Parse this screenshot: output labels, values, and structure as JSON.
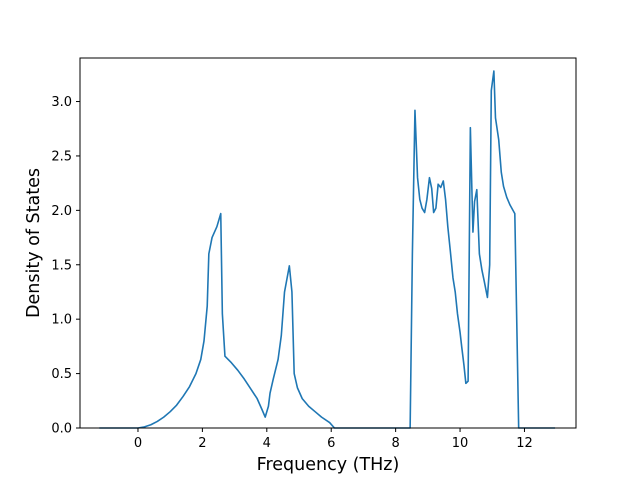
{
  "chart_data": {
    "type": "line",
    "title": "",
    "xlabel": "Frequency (THz)",
    "ylabel": "Density of States",
    "xlim": [
      -1.8,
      13.6
    ],
    "ylim": [
      0,
      3.4
    ],
    "xticks": [
      0,
      2,
      4,
      6,
      8,
      10,
      12
    ],
    "yticks": [
      0.0,
      0.5,
      1.0,
      1.5,
      2.0,
      2.5,
      3.0
    ],
    "xtick_labels": [
      "0",
      "2",
      "4",
      "6",
      "8",
      "10",
      "12"
    ],
    "ytick_labels": [
      "0.0",
      "0.5",
      "1.0",
      "1.5",
      "2.0",
      "2.5",
      "3.0"
    ],
    "grid": false,
    "legend": "none",
    "series": [
      {
        "color": "#1f77b4",
        "points": [
          [
            -1.2,
            0.0
          ],
          [
            -0.5,
            0.0
          ],
          [
            0.0,
            0.0
          ],
          [
            0.2,
            0.01
          ],
          [
            0.4,
            0.03
          ],
          [
            0.6,
            0.06
          ],
          [
            0.8,
            0.1
          ],
          [
            1.0,
            0.15
          ],
          [
            1.2,
            0.21
          ],
          [
            1.4,
            0.29
          ],
          [
            1.6,
            0.38
          ],
          [
            1.8,
            0.5
          ],
          [
            1.95,
            0.63
          ],
          [
            2.05,
            0.8
          ],
          [
            2.15,
            1.12
          ],
          [
            2.2,
            1.6
          ],
          [
            2.3,
            1.75
          ],
          [
            2.45,
            1.85
          ],
          [
            2.57,
            1.97
          ],
          [
            2.62,
            1.05
          ],
          [
            2.7,
            0.66
          ],
          [
            2.9,
            0.6
          ],
          [
            3.1,
            0.53
          ],
          [
            3.3,
            0.45
          ],
          [
            3.5,
            0.36
          ],
          [
            3.7,
            0.27
          ],
          [
            3.85,
            0.17
          ],
          [
            3.95,
            0.1
          ],
          [
            4.05,
            0.2
          ],
          [
            4.1,
            0.32
          ],
          [
            4.2,
            0.45
          ],
          [
            4.35,
            0.63
          ],
          [
            4.45,
            0.85
          ],
          [
            4.55,
            1.25
          ],
          [
            4.7,
            1.49
          ],
          [
            4.78,
            1.25
          ],
          [
            4.85,
            0.5
          ],
          [
            4.95,
            0.37
          ],
          [
            5.1,
            0.27
          ],
          [
            5.3,
            0.2
          ],
          [
            5.5,
            0.15
          ],
          [
            5.7,
            0.1
          ],
          [
            5.95,
            0.05
          ],
          [
            6.1,
            0.0
          ],
          [
            7.0,
            0.0
          ],
          [
            8.45,
            0.0
          ],
          [
            8.52,
            1.6
          ],
          [
            8.6,
            2.92
          ],
          [
            8.68,
            2.3
          ],
          [
            8.75,
            2.1
          ],
          [
            8.82,
            2.02
          ],
          [
            8.9,
            1.98
          ],
          [
            8.97,
            2.1
          ],
          [
            9.05,
            2.3
          ],
          [
            9.12,
            2.2
          ],
          [
            9.18,
            1.98
          ],
          [
            9.25,
            2.02
          ],
          [
            9.32,
            2.24
          ],
          [
            9.4,
            2.21
          ],
          [
            9.48,
            2.27
          ],
          [
            9.55,
            2.1
          ],
          [
            9.62,
            1.85
          ],
          [
            9.7,
            1.62
          ],
          [
            9.78,
            1.38
          ],
          [
            9.85,
            1.25
          ],
          [
            9.92,
            1.05
          ],
          [
            10.0,
            0.88
          ],
          [
            10.05,
            0.75
          ],
          [
            10.12,
            0.58
          ],
          [
            10.18,
            0.41
          ],
          [
            10.25,
            0.43
          ],
          [
            10.32,
            2.76
          ],
          [
            10.4,
            1.8
          ],
          [
            10.45,
            2.08
          ],
          [
            10.52,
            2.19
          ],
          [
            10.6,
            1.6
          ],
          [
            10.68,
            1.45
          ],
          [
            10.75,
            1.35
          ],
          [
            10.85,
            1.2
          ],
          [
            10.92,
            1.5
          ],
          [
            10.97,
            3.1
          ],
          [
            11.05,
            3.28
          ],
          [
            11.1,
            2.85
          ],
          [
            11.2,
            2.65
          ],
          [
            11.28,
            2.35
          ],
          [
            11.35,
            2.22
          ],
          [
            11.45,
            2.12
          ],
          [
            11.55,
            2.05
          ],
          [
            11.7,
            1.97
          ],
          [
            11.82,
            0.0
          ],
          [
            12.2,
            0.0
          ],
          [
            12.95,
            0.0
          ]
        ]
      }
    ]
  }
}
